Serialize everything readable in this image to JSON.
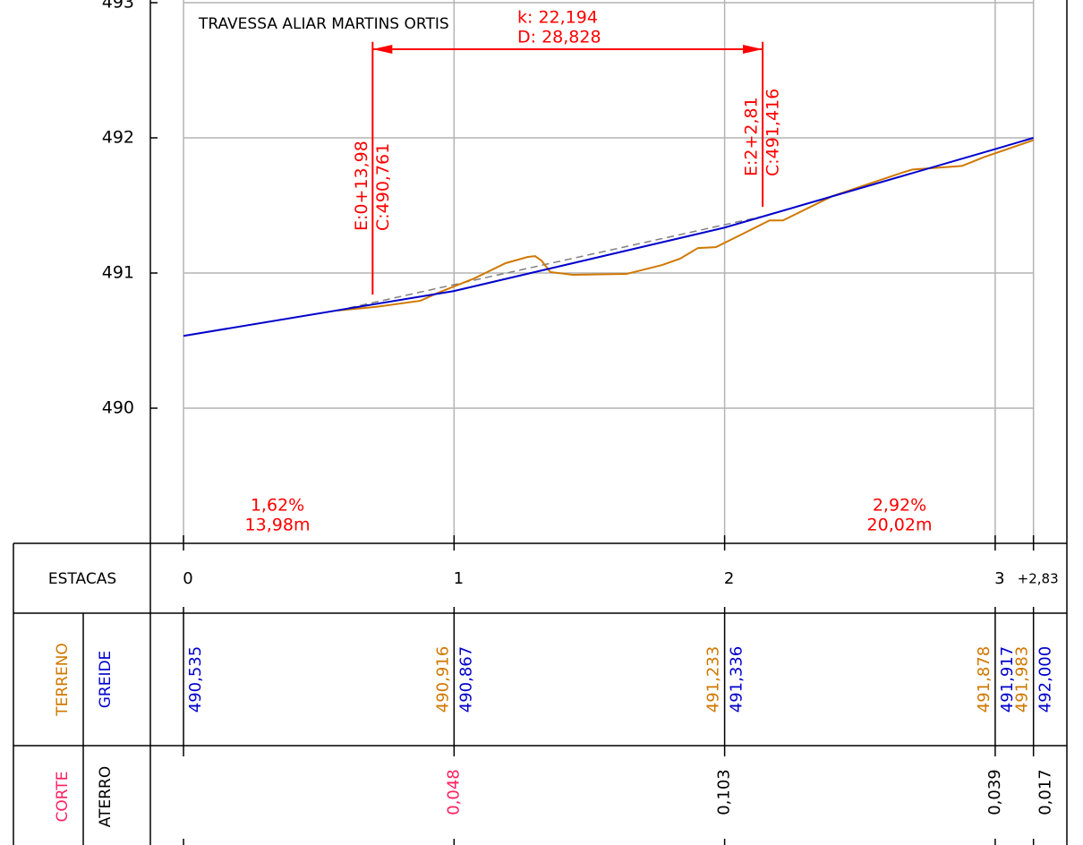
{
  "chart_data": {
    "type": "line",
    "title": "TRAVESSA ALIAR MARTINS ORTIS",
    "xlim": [
      -2.45,
      65.3
    ],
    "ylim": [
      489,
      493
    ],
    "yticks": [
      490,
      491,
      492,
      493
    ],
    "xticks": [
      {
        "value": 0,
        "label": "0"
      },
      {
        "value": 20,
        "label": "1"
      },
      {
        "value": 40,
        "label": "2"
      },
      {
        "value": 60,
        "label": "3"
      },
      {
        "value": 62.83,
        "label": "+2,83"
      }
    ],
    "grid": true,
    "series": [
      {
        "color": "#d07800",
        "x": [
          11.38,
          14.22,
          17.53,
          18.85,
          21.49,
          23.81,
          25.46,
          25.99,
          26.46,
          27.12,
          28.77,
          32.74,
          34.06,
          35.38,
          36.71,
          38.03,
          39.35,
          41.34,
          43.32,
          44.31,
          47.95,
          53.24,
          53.9,
          57.54,
          58.2,
          59.19,
          62.83
        ],
        "values": [
          490.723,
          490.749,
          490.795,
          490.855,
          490.96,
          491.073,
          491.119,
          491.125,
          491.092,
          491.007,
          490.987,
          490.993,
          491.026,
          491.059,
          491.106,
          491.185,
          491.191,
          491.29,
          491.389,
          491.389,
          491.568,
          491.746,
          491.766,
          491.792,
          491.818,
          491.858,
          491.983
        ]
      },
      {
        "color": "#0000cc",
        "x": [
          0,
          20,
          40,
          60,
          62.83
        ],
        "values": [
          490.535,
          490.867,
          491.336,
          491.917,
          492.0
        ]
      },
      {
        "color": "#808080",
        "dashed": true,
        "x": [
          11.38,
          42.66
        ],
        "values": [
          490.723,
          491.416
        ]
      }
    ],
    "curve": {
      "k": "k:  22,194",
      "d": "D:  28,828"
    },
    "markers": [
      {
        "x": 13.98,
        "ytop": 492.71,
        "ybottom": 490.84,
        "labels": [
          "E:0+13,98",
          "C:490,761"
        ]
      },
      {
        "x": 42.81,
        "ytop": 492.71,
        "ybottom": 491.49,
        "labels": [
          "E:2+2,81",
          "C:491,416"
        ]
      }
    ],
    "grades": [
      {
        "grade": "1,62%",
        "length": "13,98m"
      },
      {
        "grade": "2,92%",
        "length": "20,02m"
      }
    ],
    "row_labels": {
      "estacas": "ESTACAS",
      "terreno": "TERRENO",
      "greide": "GREIDE",
      "corte": "CORTE",
      "aterro": "ATERRO"
    },
    "table": {
      "terreno": [
        null,
        "490,916",
        "491,233",
        "491,878",
        "491,983"
      ],
      "greide": [
        "490,535",
        "490,867",
        "491,336",
        "491,917",
        "492,000"
      ],
      "corte_aterro": [
        null,
        "0,048",
        "0,103",
        "0,039",
        "0,017"
      ],
      "corte_aterro_color": [
        null,
        "#ff2060",
        "#000000",
        "#000000",
        "#000000"
      ]
    }
  }
}
